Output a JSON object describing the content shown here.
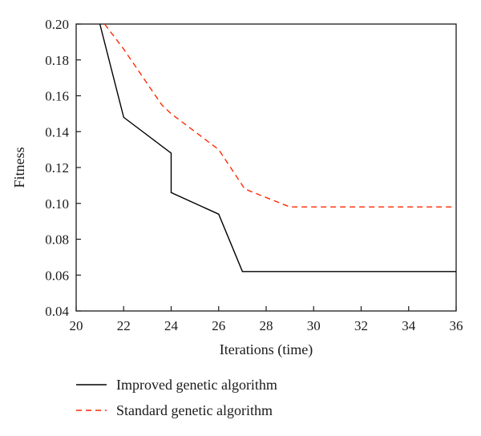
{
  "chart_data": {
    "type": "line",
    "title": "",
    "xlabel": "Iterations (time)",
    "ylabel": "Fitness",
    "xlim": [
      20,
      36
    ],
    "ylim": [
      0.04,
      0.2
    ],
    "xticks": [
      "20",
      "22",
      "24",
      "26",
      "28",
      "30",
      "32",
      "34",
      "36"
    ],
    "yticks": [
      "0.04",
      "0.06",
      "0.08",
      "0.10",
      "0.12",
      "0.14",
      "0.16",
      "0.18",
      "0.20"
    ],
    "grid": false,
    "legend_position": "bottom",
    "series": [
      {
        "name": "Improved genetic algorithm",
        "color": "#000000",
        "style": "solid",
        "x": [
          21,
          22,
          24,
          24,
          26,
          27,
          36
        ],
        "y": [
          0.2,
          0.148,
          0.128,
          0.106,
          0.094,
          0.062,
          0.062
        ]
      },
      {
        "name": "Standard genetic algorithm",
        "color": "#ff2a00",
        "style": "dashed",
        "x": [
          21.2,
          22,
          23.6,
          24,
          26,
          27.1,
          29,
          36
        ],
        "y": [
          0.2,
          0.186,
          0.155,
          0.15,
          0.13,
          0.108,
          0.098,
          0.098
        ]
      }
    ]
  }
}
